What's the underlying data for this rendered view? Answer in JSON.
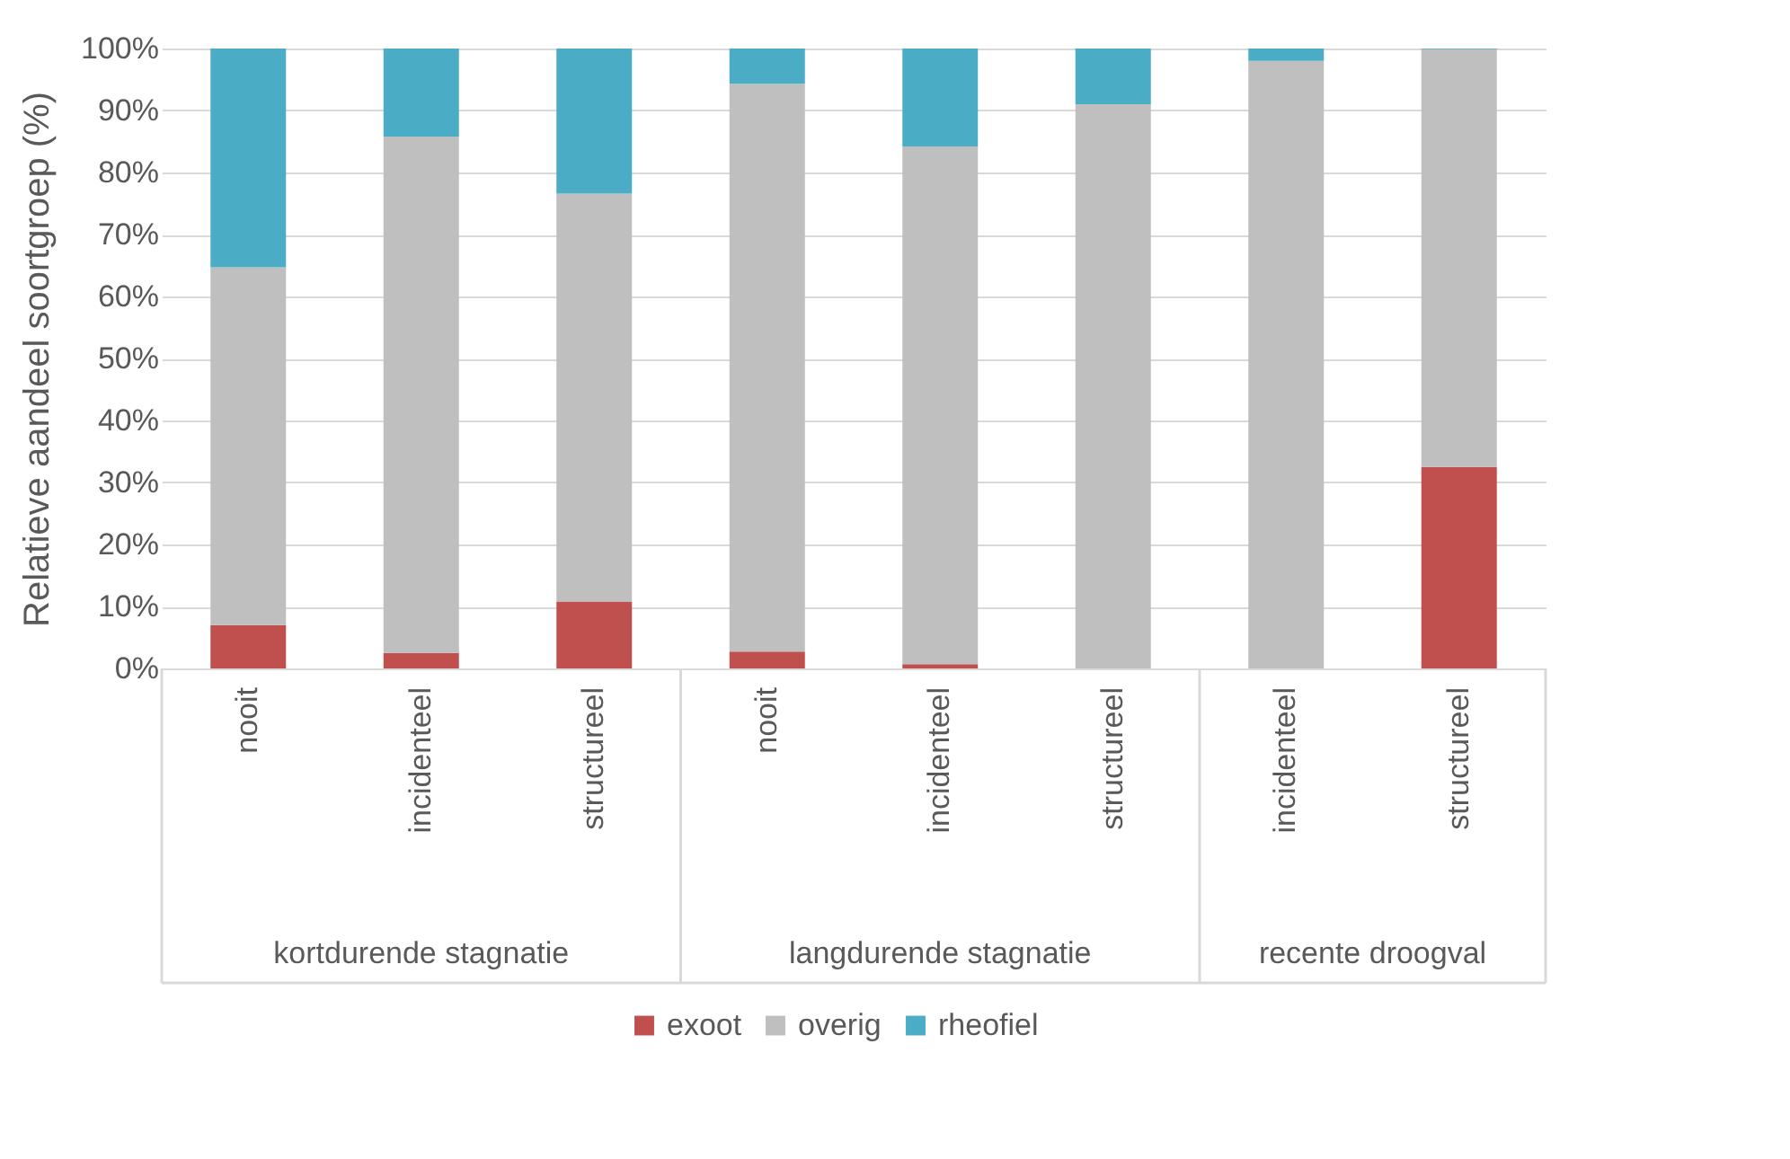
{
  "chart_data": {
    "type": "bar",
    "stacked": true,
    "ylabel": "Relatieve aandeel soortgroep (%)",
    "categories": [
      "nooit",
      "incidenteel",
      "structureel",
      "nooit",
      "incidenteel",
      "structureel",
      "incidenteel",
      "structureel"
    ],
    "annotations": [
      "kortdurende stagnatie",
      "langdurende stagnatie",
      "recente droogval"
    ],
    "series": [
      {
        "name": "exoot",
        "color": "#c0504d",
        "values": [
          7.0,
          2.5,
          10.8,
          2.7,
          0.7,
          0,
          0,
          32.5
        ]
      },
      {
        "name": "overig",
        "color": "#bfbfbf",
        "values": [
          57.7,
          83.3,
          65.8,
          91.6,
          83.5,
          91.0,
          98.0,
          67.4
        ]
      },
      {
        "name": "rheofiel",
        "color": "#4bacc6",
        "values": [
          35.3,
          14.2,
          23.4,
          5.7,
          15.8,
          9.0,
          2.0,
          0.1
        ]
      }
    ],
    "ylim": [
      0,
      100
    ],
    "yticks": [
      {
        "value": 0,
        "label": "0%"
      },
      {
        "value": 10,
        "label": "10%"
      },
      {
        "value": 20,
        "label": "20%"
      },
      {
        "value": 30,
        "label": "30%"
      },
      {
        "value": 40,
        "label": "40%"
      },
      {
        "value": 50,
        "label": "50%"
      },
      {
        "value": 60,
        "label": "60%"
      },
      {
        "value": 70,
        "label": "70%"
      },
      {
        "value": 80,
        "label": "80%"
      },
      {
        "value": 90,
        "label": "90%"
      },
      {
        "value": 100,
        "label": "100%"
      }
    ],
    "grid": "y",
    "legend": "bottom"
  }
}
